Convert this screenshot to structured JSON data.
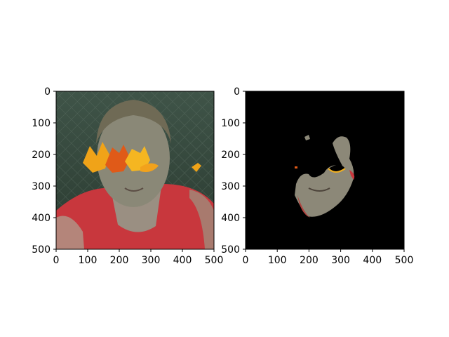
{
  "figure": {
    "background": "#ffffff"
  },
  "chart_data": [
    {
      "type": "image",
      "title": "",
      "xlabel": "",
      "ylabel": "",
      "xlim": [
        0,
        500
      ],
      "ylim": [
        500,
        0
      ],
      "xticks": [
        0,
        100,
        200,
        300,
        400,
        500
      ],
      "yticks": [
        0,
        100,
        200,
        300,
        400,
        500
      ],
      "grid": false,
      "content": "photo of a person's face in a red top with autumn leaves overlaid across the eyes"
    },
    {
      "type": "image",
      "title": "",
      "xlabel": "",
      "ylabel": "",
      "xlim": [
        0,
        500
      ],
      "ylim": [
        500,
        0
      ],
      "xticks": [
        0,
        100,
        200,
        300,
        400,
        500
      ],
      "yticks": [
        0,
        100,
        200,
        300,
        400,
        500
      ],
      "grid": false,
      "background": "#000000",
      "content": "segmentation mask: only the skin region of the face is visible on black"
    }
  ]
}
